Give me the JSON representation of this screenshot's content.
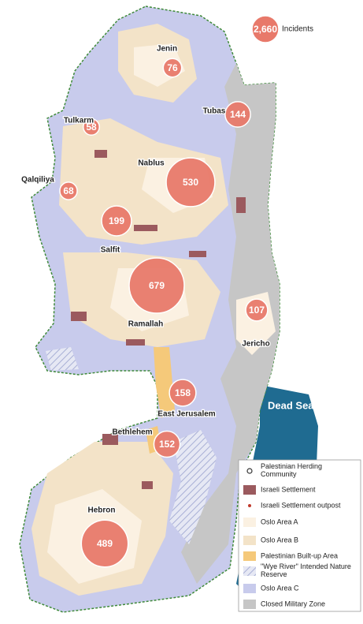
{
  "total": {
    "value": 2660,
    "label": "2,660"
  },
  "total_unit": "Incidents",
  "governorates": [
    {
      "name": "Jenin",
      "incidents": 76
    },
    {
      "name": "Tubas",
      "incidents": 144
    },
    {
      "name": "Tulkarm",
      "incidents": 58
    },
    {
      "name": "Nablus",
      "incidents": 530
    },
    {
      "name": "Qalqiliya",
      "incidents": 68
    },
    {
      "name": "Salfit",
      "incidents": 199
    },
    {
      "name": "Ramallah",
      "incidents": 679
    },
    {
      "name": "Jericho",
      "incidents": 107
    },
    {
      "name": "East Jerusalem",
      "incidents": 158
    },
    {
      "name": "Bethlehem",
      "incidents": 152
    },
    {
      "name": "Hebron",
      "incidents": 489
    }
  ],
  "sea_label": "Dead Sea",
  "legend": [
    "Palestinian Herding Community",
    "Israeli Settlement",
    "Israeli Settlement outpost",
    "Oslo Area A",
    "Oslo Area B",
    "Palestinian Built-up Area",
    "\"Wye River\" Intended Nature Reserve",
    "Oslo Area C",
    "Closed Military Zone"
  ]
}
